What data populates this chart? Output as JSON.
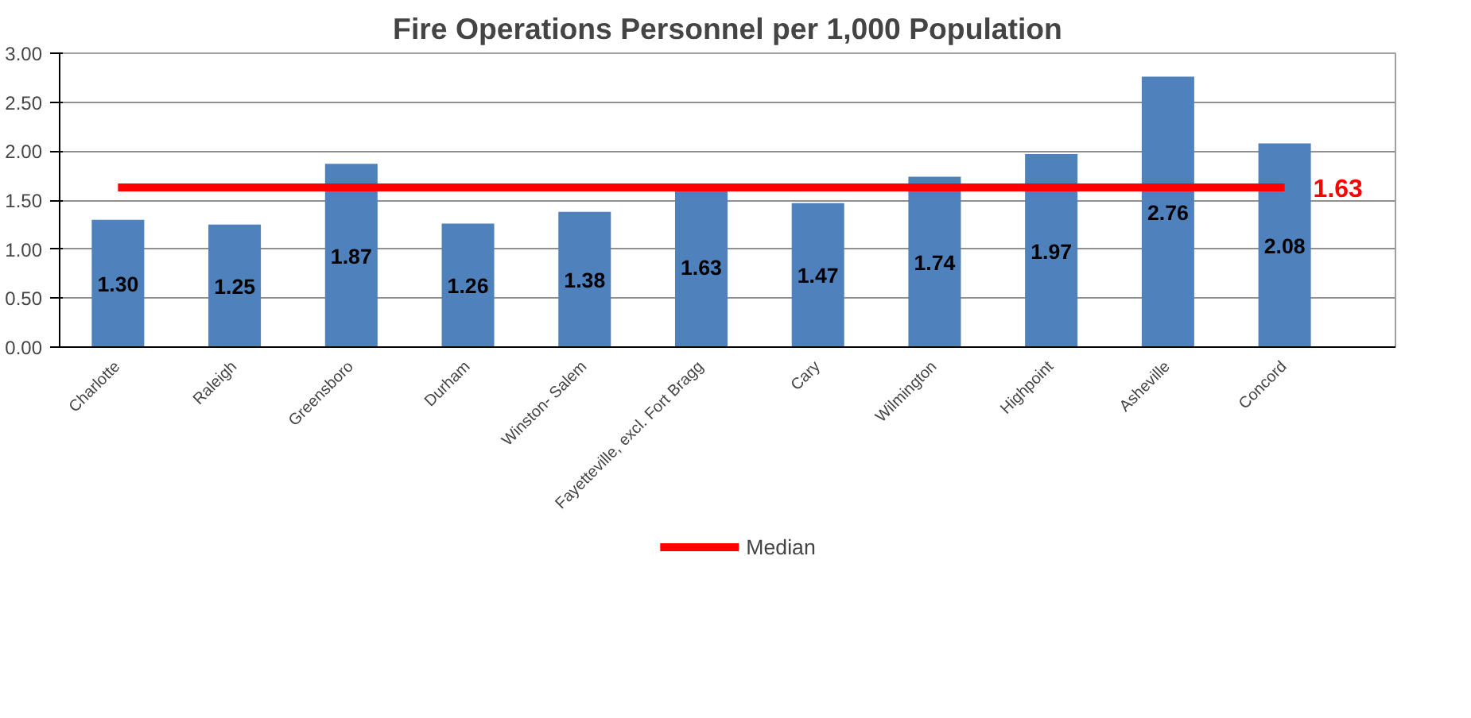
{
  "chart_data": {
    "type": "bar",
    "title": "Fire Operations Personnel per 1,000 Population",
    "categories": [
      "Charlotte",
      "Raleigh",
      "Greensboro",
      "Durham",
      "Winston- Salem",
      "Fayetteville, excl. Fort Bragg",
      "Cary",
      "Wilmington",
      "Highpoint",
      "Asheville",
      "Concord"
    ],
    "series": [
      {
        "color": "#4f81bd",
        "values": [
          1.3,
          1.25,
          1.87,
          1.26,
          1.38,
          1.63,
          1.47,
          1.74,
          1.97,
          2.76,
          2.08
        ],
        "value_labels": [
          "1.30",
          "1.25",
          "1.87",
          "1.26",
          "1.38",
          "1.63",
          "1.47",
          "1.74",
          "1.97",
          "2.76",
          "2.08"
        ]
      },
      {
        "type": "line",
        "name": "Median",
        "color": "#ff0000",
        "values": [
          1.63,
          1.63,
          1.63,
          1.63,
          1.63,
          1.63,
          1.63,
          1.63,
          1.63,
          1.63,
          1.63
        ]
      }
    ],
    "annotations": [
      {
        "text": "1.63",
        "x": "Concord",
        "y": 1.63
      }
    ],
    "ylim": [
      0,
      3
    ],
    "yticks": [
      {
        "value": 0,
        "label": "0.00"
      },
      {
        "value": 0.5,
        "label": "0.50"
      },
      {
        "value": 1,
        "label": "1.00"
      },
      {
        "value": 1.5,
        "label": "1.50"
      },
      {
        "value": 2,
        "label": "2.00"
      },
      {
        "value": 2.5,
        "label": "2.50"
      },
      {
        "value": 3,
        "label": "3.00"
      }
    ],
    "grid": "y",
    "legend": "bottom"
  }
}
